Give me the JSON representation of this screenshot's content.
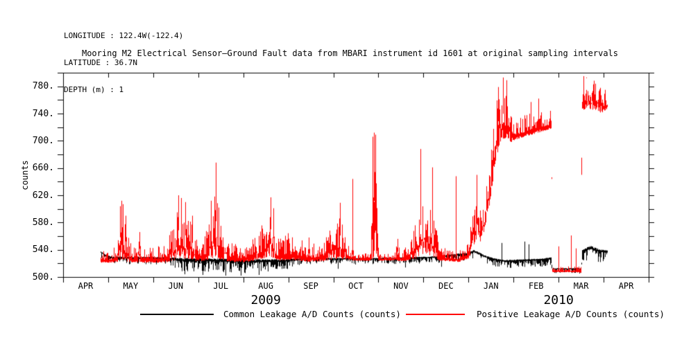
{
  "header": {
    "longitude": "LONGITUDE : 122.4W(-122.4)",
    "latitude": "LATITUDE : 36.7N",
    "depth": "DEPTH (m) : 1"
  },
  "title": "Mooring M2 Electrical Sensor—Ground Fault data from MBARI instrument id 1601 at original sampling intervals",
  "chart_data": {
    "type": "line",
    "title": "Mooring M2 Electrical Sensor—Ground Fault data from MBARI instrument id 1601 at original sampling intervals",
    "xlabel": "",
    "ylabel": "counts",
    "ylim": [
      500,
      800
    ],
    "xlim_months": [
      0,
      13
    ],
    "grid": false,
    "ytick_minor_step": 20,
    "ytick_labels": [
      {
        "value": 500,
        "label": "500."
      },
      {
        "value": 540,
        "label": "540."
      },
      {
        "value": 580,
        "label": "580."
      },
      {
        "value": 620,
        "label": "620."
      },
      {
        "value": 660,
        "label": "660."
      },
      {
        "value": 700,
        "label": "700."
      },
      {
        "value": 740,
        "label": "740."
      },
      {
        "value": 780,
        "label": "780."
      }
    ],
    "month_labels": [
      "APR",
      "MAY",
      "JUN",
      "JUL",
      "AUG",
      "SEP",
      "OCT",
      "NOV",
      "DEC",
      "JAN",
      "FEB",
      "MAR",
      "APR"
    ],
    "year_labels": [
      {
        "label": "2009",
        "center_month": 4.5
      },
      {
        "label": "2010",
        "center_month": 11
      }
    ],
    "legend_position": "bottom",
    "series": [
      {
        "name": "Common Leakage A/D Counts (counts)",
        "color": "#000000",
        "noise_anchor": "top",
        "envelope": [
          [
            0.83,
            527,
            538
          ],
          [
            0.95,
            523,
            532
          ],
          [
            1.1,
            519,
            530
          ],
          [
            2.3,
            518,
            529
          ],
          [
            2.6,
            508,
            528
          ],
          [
            3.5,
            506,
            527
          ],
          [
            4.2,
            505,
            526
          ],
          [
            4.8,
            508,
            526
          ],
          [
            5.45,
            518,
            528
          ],
          [
            6.9,
            518,
            528
          ],
          [
            8.15,
            520,
            530
          ],
          [
            9.0,
            524,
            536
          ],
          [
            9.12,
            526,
            540
          ],
          [
            9.35,
            519,
            532
          ],
          [
            9.6,
            515,
            527
          ],
          [
            9.8,
            513,
            525
          ],
          [
            10.2,
            514,
            526
          ],
          [
            10.6,
            515,
            527
          ],
          [
            10.83,
            517,
            529
          ],
          [
            10.85,
            505,
            513
          ],
          [
            11.5,
            505,
            513
          ],
          [
            11.52,
            521,
            540
          ],
          [
            11.7,
            524,
            546
          ],
          [
            11.9,
            521,
            541
          ],
          [
            12.08,
            523,
            539
          ]
        ],
        "spikes": [
          [
            2.7,
            504
          ],
          [
            3.1,
            503
          ],
          [
            3.6,
            502
          ],
          [
            3.95,
            502
          ],
          [
            4.35,
            503
          ],
          [
            6.1,
            512
          ],
          [
            7.6,
            514
          ],
          [
            8.4,
            515
          ],
          [
            9.03,
            547
          ],
          [
            9.74,
            550
          ],
          [
            10.24,
            552
          ],
          [
            10.34,
            548
          ]
        ]
      },
      {
        "name": "Positive Leakage A/D Counts (counts)",
        "color": "#ff0000",
        "noise_anchor": "bottom",
        "envelope": [
          [
            0.83,
            521,
            538
          ],
          [
            1.05,
            521,
            540
          ],
          [
            1.2,
            522,
            550
          ],
          [
            1.24,
            524,
            585
          ],
          [
            1.3,
            526,
            606
          ],
          [
            1.36,
            524,
            588
          ],
          [
            1.44,
            522,
            560
          ],
          [
            1.55,
            521,
            542
          ],
          [
            1.68,
            522,
            565
          ],
          [
            1.78,
            521,
            545
          ],
          [
            2.25,
            521,
            548
          ],
          [
            2.45,
            524,
            582
          ],
          [
            2.57,
            528,
            612
          ],
          [
            2.66,
            527,
            600
          ],
          [
            2.83,
            526,
            585
          ],
          [
            2.95,
            523,
            556
          ],
          [
            3.15,
            524,
            562
          ],
          [
            3.28,
            527,
            600
          ],
          [
            3.39,
            529,
            635
          ],
          [
            3.48,
            526,
            585
          ],
          [
            3.7,
            522,
            552
          ],
          [
            4.05,
            522,
            546
          ],
          [
            4.38,
            526,
            572
          ],
          [
            4.6,
            530,
            610
          ],
          [
            4.74,
            524,
            556
          ],
          [
            5.0,
            525,
            565
          ],
          [
            5.25,
            524,
            558
          ],
          [
            5.42,
            522,
            546
          ],
          [
            5.76,
            523,
            556
          ],
          [
            5.95,
            525,
            572
          ],
          [
            6.14,
            527,
            595
          ],
          [
            6.3,
            525,
            556
          ],
          [
            6.48,
            524,
            534
          ],
          [
            6.82,
            524,
            535
          ],
          [
            6.88,
            527,
            695
          ],
          [
            6.94,
            527,
            700
          ],
          [
            7.01,
            524,
            535
          ],
          [
            7.33,
            524,
            534
          ],
          [
            7.42,
            524,
            552
          ],
          [
            7.52,
            523,
            535
          ],
          [
            7.83,
            526,
            590
          ],
          [
            7.95,
            534,
            622
          ],
          [
            8.1,
            531,
            605
          ],
          [
            8.22,
            529,
            598
          ],
          [
            8.34,
            524,
            546
          ],
          [
            8.6,
            523,
            542
          ],
          [
            8.78,
            522,
            538
          ],
          [
            9.0,
            527,
            552
          ],
          [
            9.1,
            543,
            608
          ],
          [
            9.19,
            558,
            638
          ],
          [
            9.26,
            552,
            596
          ],
          [
            9.33,
            562,
            612
          ],
          [
            9.47,
            608,
            672
          ],
          [
            9.6,
            672,
            755
          ],
          [
            9.7,
            698,
            780
          ],
          [
            9.8,
            702,
            778
          ],
          [
            9.88,
            698,
            762
          ],
          [
            9.94,
            698,
            742
          ],
          [
            10.05,
            702,
            730
          ],
          [
            10.3,
            707,
            740
          ],
          [
            10.6,
            713,
            746
          ],
          [
            10.84,
            718,
            744
          ],
          [
            10.85,
            507,
            516
          ],
          [
            11.25,
            507,
            516
          ],
          [
            11.5,
            506,
            517
          ],
          [
            11.51,
            744,
            790
          ],
          [
            11.62,
            748,
            794
          ],
          [
            11.8,
            744,
            788
          ],
          [
            11.95,
            741,
            782
          ],
          [
            12.08,
            747,
            772
          ]
        ],
        "spikes": [
          [
            1.26,
            604
          ],
          [
            1.29,
            612
          ],
          [
            1.32,
            607
          ],
          [
            1.38,
            590
          ],
          [
            1.7,
            566
          ],
          [
            2.56,
            620
          ],
          [
            2.62,
            616
          ],
          [
            2.71,
            610
          ],
          [
            2.87,
            590
          ],
          [
            3.28,
            612
          ],
          [
            3.39,
            668
          ],
          [
            3.45,
            602
          ],
          [
            4.6,
            617
          ],
          [
            4.66,
            601
          ],
          [
            5.46,
            558
          ],
          [
            6.14,
            609
          ],
          [
            6.42,
            644
          ],
          [
            6.87,
            706
          ],
          [
            6.9,
            712
          ],
          [
            6.93,
            709
          ],
          [
            7.43,
            556
          ],
          [
            7.94,
            688
          ],
          [
            8.2,
            661
          ],
          [
            8.72,
            648
          ],
          [
            9.18,
            650
          ],
          [
            9.66,
            779
          ],
          [
            9.77,
            793
          ],
          [
            9.84,
            789
          ],
          [
            10.38,
            757
          ],
          [
            10.55,
            762
          ],
          [
            11.0,
            545
          ],
          [
            11.27,
            561
          ],
          [
            11.38,
            542
          ],
          [
            11.55,
            795
          ],
          [
            11.61,
            793
          ]
        ]
      }
    ]
  },
  "legend": [
    {
      "name": "Common Leakage A/D Counts (counts)",
      "color": "#000000"
    },
    {
      "name": "Positive Leakage A/D Counts (counts)",
      "color": "#ff0000"
    }
  ]
}
